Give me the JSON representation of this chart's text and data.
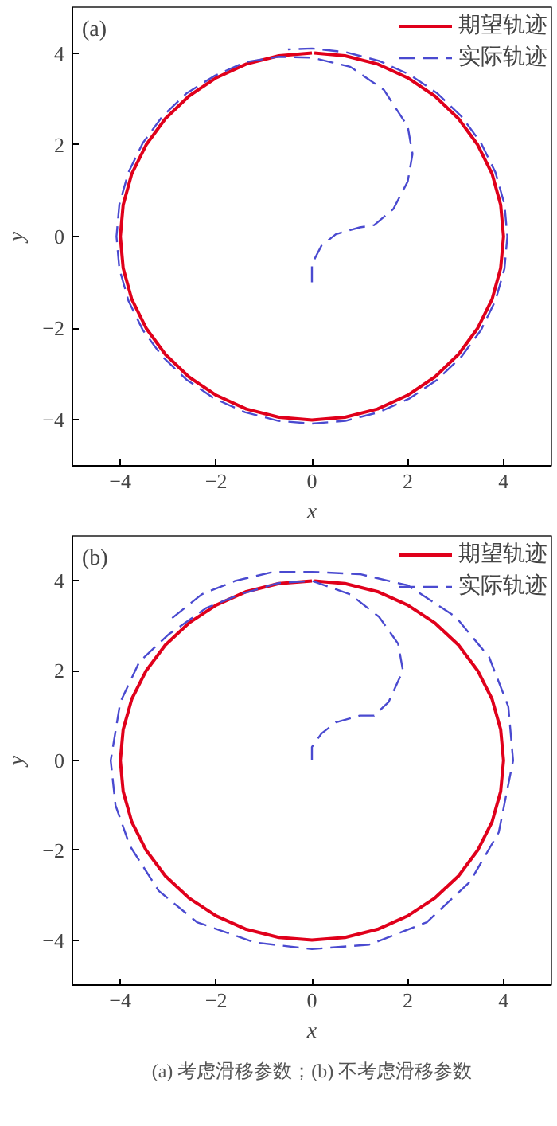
{
  "chart_data": [
    {
      "type": "line",
      "xlabel": "x",
      "ylabel": "y",
      "annotations": [
        "(a)"
      ],
      "xlim": [
        -5,
        5
      ],
      "ylim": [
        -5,
        5
      ],
      "xticks": [
        -4,
        -2,
        0,
        2,
        4
      ],
      "yticks": [
        -4,
        -2,
        0,
        2,
        4
      ],
      "grid": false,
      "legend": "top right",
      "marker": "none",
      "series": [
        {
          "name": "期望轨迹",
          "color": "#e0001b",
          "line_style": "solid",
          "x": [
            0,
            -0.69,
            -1.37,
            -2.0,
            -2.57,
            -3.06,
            -3.46,
            -3.76,
            -3.94,
            -4,
            -3.94,
            -3.76,
            -3.46,
            -3.06,
            -2.57,
            -2.0,
            -1.37,
            -0.69,
            0,
            0.69,
            1.37,
            2.0,
            2.57,
            3.06,
            3.46,
            3.76,
            3.94,
            4,
            3.94,
            3.76,
            3.46,
            3.06,
            2.57,
            2.0,
            1.37,
            0.69,
            0.05
          ],
          "values": [
            4,
            3.94,
            3.76,
            3.46,
            3.06,
            2.57,
            2.0,
            1.37,
            0.69,
            0,
            -0.69,
            -1.37,
            -2.0,
            -2.57,
            -3.06,
            -3.46,
            -3.76,
            -3.94,
            -4,
            -3.94,
            -3.76,
            -3.46,
            -3.06,
            -2.57,
            -2.0,
            -1.37,
            -0.69,
            0,
            0.69,
            1.37,
            2.0,
            2.57,
            3.06,
            3.46,
            3.76,
            3.94,
            4
          ]
        },
        {
          "name": "实际轨迹",
          "color": "#4a4ad0",
          "line_style": "dashed",
          "x": [
            0,
            0,
            0.2,
            0.5,
            1.0,
            1.3,
            1.7,
            2.0,
            2.1,
            2.0,
            1.5,
            0.8,
            0,
            -0.7,
            -1.4,
            -2.04,
            -2.62,
            -3.12,
            -3.53,
            -3.83,
            -4.02,
            -4.08,
            -4.02,
            -3.83,
            -3.53,
            -3.12,
            -2.62,
            -2.04,
            -1.4,
            -0.7,
            0,
            0.7,
            1.4,
            2.04,
            2.62,
            3.12,
            3.53,
            3.83,
            4.02,
            4.08,
            4.02,
            3.83,
            3.53,
            3.12,
            2.62,
            2.04,
            1.4,
            0.7,
            0,
            -0.5
          ],
          "values": [
            -1,
            -0.6,
            -0.2,
            0.05,
            0.2,
            0.25,
            0.6,
            1.2,
            1.8,
            2.4,
            3.2,
            3.7,
            3.9,
            3.92,
            3.8,
            3.5,
            3.12,
            2.62,
            2.04,
            1.4,
            0.7,
            0,
            -0.7,
            -1.4,
            -2.04,
            -2.62,
            -3.12,
            -3.53,
            -3.83,
            -4.02,
            -4.08,
            -4.02,
            -3.83,
            -3.53,
            -3.12,
            -2.62,
            -2.04,
            -1.4,
            -0.7,
            0,
            0.7,
            1.4,
            2.04,
            2.62,
            3.12,
            3.53,
            3.83,
            4.02,
            4.1,
            4.08
          ]
        }
      ]
    },
    {
      "type": "line",
      "xlabel": "x",
      "ylabel": "y",
      "annotations": [
        "(b)",
        "(a) 考虑滑移参数；(b) 不考虑滑移参数"
      ],
      "xlim": [
        -5,
        5
      ],
      "ylim": [
        -5,
        5
      ],
      "xticks": [
        -4,
        -2,
        0,
        2,
        4
      ],
      "yticks": [
        -4,
        -2,
        0,
        2,
        4
      ],
      "grid": false,
      "legend": "top right",
      "marker": "none",
      "series": [
        {
          "name": "期望轨迹",
          "color": "#e0001b",
          "line_style": "solid",
          "x": [
            0,
            -0.69,
            -1.37,
            -2.0,
            -2.57,
            -3.06,
            -3.46,
            -3.76,
            -3.94,
            -4,
            -3.94,
            -3.76,
            -3.46,
            -3.06,
            -2.57,
            -2.0,
            -1.37,
            -0.69,
            0,
            0.69,
            1.37,
            2.0,
            2.57,
            3.06,
            3.46,
            3.76,
            3.94,
            4,
            3.94,
            3.76,
            3.46,
            3.06,
            2.57,
            2.0,
            1.37,
            0.69,
            0.05
          ],
          "values": [
            4,
            3.94,
            3.76,
            3.46,
            3.06,
            2.57,
            2.0,
            1.37,
            0.69,
            0,
            -0.69,
            -1.37,
            -2.0,
            -2.57,
            -3.06,
            -3.46,
            -3.76,
            -3.94,
            -4,
            -3.94,
            -3.76,
            -3.46,
            -3.06,
            -2.57,
            -2.0,
            -1.37,
            -0.69,
            0,
            0.69,
            1.37,
            2.0,
            2.57,
            3.06,
            3.46,
            3.76,
            3.94,
            4
          ]
        },
        {
          "name": "实际轨迹",
          "color": "#4a4ad0",
          "line_style": "dashed",
          "x": [
            0,
            0,
            0.2,
            0.5,
            1.0,
            1.3,
            1.6,
            1.9,
            1.8,
            1.4,
            0.8,
            0,
            -0.7,
            -1.5,
            -2.2,
            -3.0,
            -3.6,
            -4.0,
            -4.2,
            -4.1,
            -3.8,
            -3.2,
            -2.4,
            -1.2,
            0,
            1.2,
            2.4,
            3.3,
            3.9,
            4.2,
            4.1,
            3.7,
            3.0,
            2.0,
            1.0,
            0,
            -0.8,
            -1.6,
            -2.3,
            -3.0
          ],
          "values": [
            0,
            0.3,
            0.6,
            0.85,
            1.0,
            1.0,
            1.3,
            2.0,
            2.6,
            3.2,
            3.7,
            4.0,
            3.95,
            3.7,
            3.4,
            2.8,
            2.2,
            1.3,
            0,
            -1.0,
            -1.9,
            -2.9,
            -3.6,
            -4.05,
            -4.2,
            -4.1,
            -3.6,
            -2.7,
            -1.6,
            0,
            1.2,
            2.3,
            3.2,
            3.9,
            4.15,
            4.2,
            4.2,
            4.0,
            3.7,
            3.1
          ]
        }
      ]
    }
  ]
}
